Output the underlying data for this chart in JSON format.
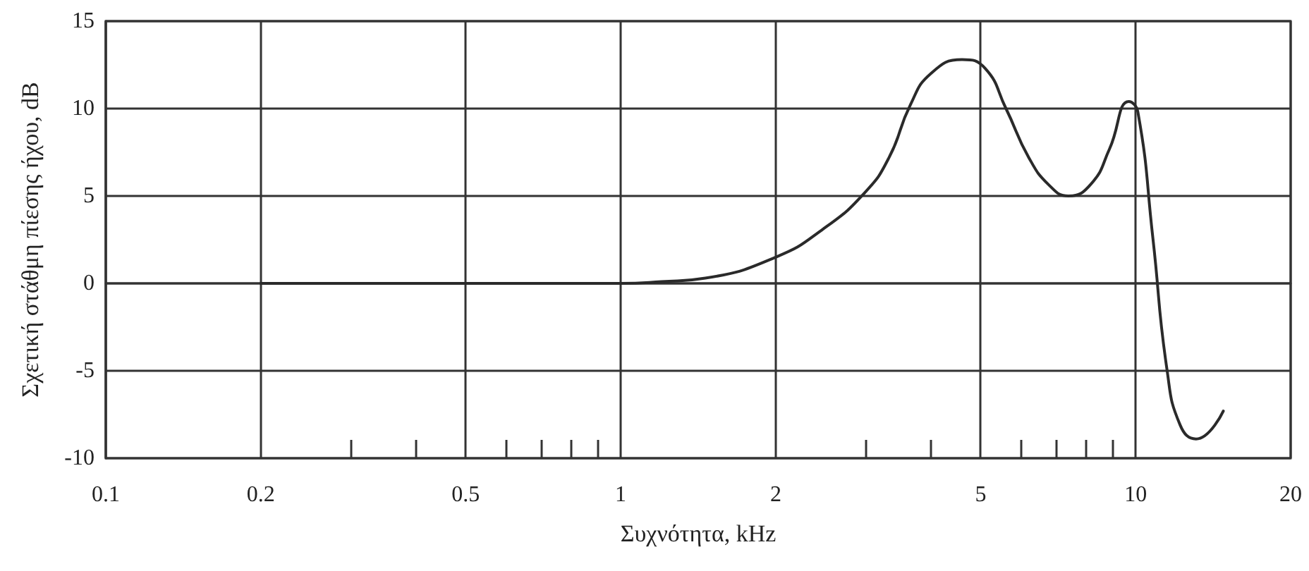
{
  "chart_data": {
    "type": "line",
    "xlabel": "Συχνότητα, kHz",
    "ylabel": "Σχετική στάθμη πίεσης ήχου, dB",
    "log": "x",
    "grid": true,
    "marker": "none",
    "line_style": "solid",
    "xlim": [
      0.1,
      20
    ],
    "ylim": [
      -10,
      15
    ],
    "xticks": [
      0.1,
      0.2,
      {
        "value": 0.3,
        "label": null
      },
      {
        "value": 0.4,
        "label": null
      },
      0.5,
      {
        "value": 0.6,
        "label": null
      },
      {
        "value": 0.7,
        "label": null
      },
      {
        "value": 0.8,
        "label": null
      },
      {
        "value": 0.9,
        "label": null
      },
      1,
      2,
      {
        "value": 3,
        "label": null
      },
      {
        "value": 4,
        "label": null
      },
      5,
      {
        "value": 6,
        "label": null
      },
      {
        "value": 7,
        "label": null
      },
      {
        "value": 8,
        "label": null
      },
      {
        "value": 9,
        "label": null
      },
      10,
      20
    ],
    "yticks": [
      -10,
      -5,
      0,
      5,
      10,
      15
    ],
    "series": [
      {
        "color": "#2a2a2a",
        "x": [
          0.2,
          0.5,
          1.0,
          1.2,
          1.46,
          2.0,
          2.47,
          2.98,
          3.32,
          3.65,
          4.0,
          4.6,
          5.1,
          5.6,
          6.2,
          6.8,
          7.4,
          8.2,
          8.9,
          9.7,
          10.1,
          10.8,
          11.5,
          12.2,
          13.1,
          14.8
        ],
        "values": [
          0,
          0,
          0,
          0.1,
          0.3,
          1.5,
          3.1,
          5.2,
          7.2,
          10.2,
          12,
          12.8,
          12.3,
          10,
          7.2,
          5.6,
          5.0,
          5.7,
          7.7,
          10.4,
          9.8,
          2.6,
          -4.9,
          -8.1,
          -8.9,
          -7.3
        ]
      }
    ]
  }
}
